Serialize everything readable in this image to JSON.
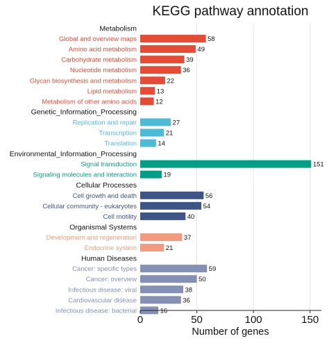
{
  "chart_data": {
    "type": "bar",
    "orientation": "horizontal",
    "title": "KEGG pathway annotation",
    "xlabel": "Number of genes",
    "ylabel": "",
    "xlim": [
      0,
      160
    ],
    "xticks": [
      0,
      50,
      100,
      150
    ],
    "grid": "vertical",
    "legend": "none",
    "groups": [
      {
        "name": "Metabolism",
        "color": "#e64b35",
        "items": [
          {
            "label": "Global and overview maps",
            "value": 58
          },
          {
            "label": "Amino acid metabolism",
            "value": 49
          },
          {
            "label": "Carbohydrate metabolism",
            "value": 39
          },
          {
            "label": "Nucleotide metabolism",
            "value": 36
          },
          {
            "label": "Glycan biosynthesis and metabolism",
            "value": 22
          },
          {
            "label": "Lipid metabolism",
            "value": 13
          },
          {
            "label": "Metabolism of other amino acids",
            "value": 12
          }
        ]
      },
      {
        "name": "Genetic_Information_Processing",
        "color": "#4dbbd5",
        "items": [
          {
            "label": "Replication and repair",
            "value": 27
          },
          {
            "label": "Transcription",
            "value": 21
          },
          {
            "label": "Translation",
            "value": 14
          }
        ]
      },
      {
        "name": "Environmental_Information_Processing",
        "color": "#00a087",
        "items": [
          {
            "label": "Signal transduction",
            "value": 151
          },
          {
            "label": "Signaling molecules and interaction",
            "value": 19
          }
        ]
      },
      {
        "name": "Cellular Processes",
        "color": "#3c5488",
        "items": [
          {
            "label": "Cell growth and death",
            "value": 56
          },
          {
            "label": "Cellular community - eukaryotes",
            "value": 54
          },
          {
            "label": "Cell motility",
            "value": 40
          }
        ]
      },
      {
        "name": "Organismal Systems",
        "color": "#f39b7f",
        "items": [
          {
            "label": "Development and regeneration",
            "value": 37
          },
          {
            "label": "Endocrine system",
            "value": 21
          }
        ]
      },
      {
        "name": "Human Diseases",
        "color": "#8491b4",
        "items": [
          {
            "label": "Cancer: specific types",
            "value": 59
          },
          {
            "label": "Cancer: overview",
            "value": 50
          },
          {
            "label": "Infectious disease: viral",
            "value": 38
          },
          {
            "label": "Cardiovascular disease",
            "value": 36
          },
          {
            "label": "Infectious disease: bacterial",
            "value": 16
          }
        ]
      }
    ]
  }
}
